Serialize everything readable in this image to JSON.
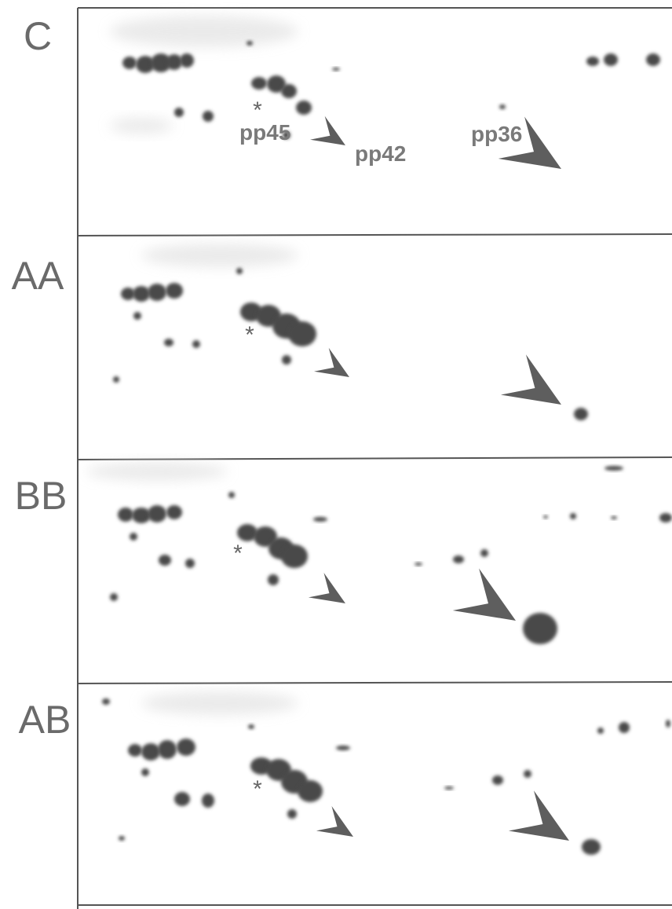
{
  "panels": [
    {
      "label": "C",
      "asterisk": "*",
      "annotations": [
        "pp45",
        "pp42",
        "pp36"
      ]
    },
    {
      "label": "AA",
      "asterisk": "*"
    },
    {
      "label": "BB",
      "asterisk": "*"
    },
    {
      "label": "AB",
      "asterisk": "*"
    }
  ]
}
